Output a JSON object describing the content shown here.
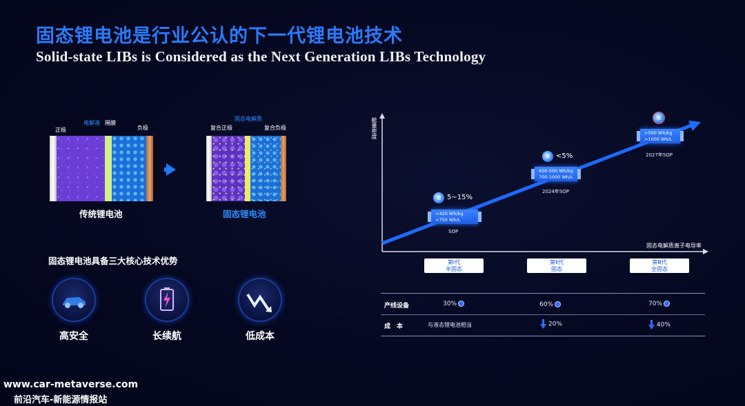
{
  "title_cn": "固态锂电池是行业公认的下一代锂电池技术",
  "title_en": "Solid-state LIBs is Considered as the Next Generation LIBs Technology",
  "traditional_cell": {
    "label_cathode": "正极",
    "label_electrolyte": "电解液",
    "label_separator": "隔膜",
    "label_anode": "负极",
    "name": "传统锂电池"
  },
  "solid_cell": {
    "label_electrolyte": "固态电解质",
    "label_cathode": "复合正极",
    "label_anode": "复合负极",
    "name": "固态锂电池"
  },
  "advantages": {
    "title": "固态锂电池具备三大核心技术优势",
    "items": [
      {
        "label": "高安全",
        "icon": "car-icon"
      },
      {
        "label": "长续航",
        "icon": "battery-bolt-icon"
      },
      {
        "label": "低成本",
        "icon": "trend-down-icon"
      }
    ]
  },
  "graph": {
    "y_axis": "能量密度",
    "x_axis": "固态电解质离子电导率",
    "gens": [
      {
        "name": "第Ⅰ代",
        "sub": "半固态",
        "liquid_label": "液",
        "liquid_pct": "5~15%",
        "spec1": "<420 Wh/kg",
        "spec2": "<750 Wh/L",
        "sop": "SOP"
      },
      {
        "name": "第Ⅱ代",
        "sub": "固态",
        "liquid_label": "液",
        "liquid_pct": "<5%",
        "spec1": "400-500 Wh/kg",
        "spec2": "700-1000 Wh/L",
        "sop": "2024年SOP"
      },
      {
        "name": "第Ⅲ代",
        "sub": "全固态",
        "liquid_label": "液",
        "liquid_pct": "",
        "spec1": ">500 Wh/kg",
        "spec2": ">1000 Wh/L",
        "sop": "2027年SOP"
      }
    ]
  },
  "table": {
    "row1_label": "产线设备",
    "row1": [
      "30%",
      "60%",
      "70%"
    ],
    "row2_label": "成　本",
    "row2": [
      "与液态锂电池相当",
      "20%",
      "40%"
    ]
  },
  "footer": {
    "url": "www.car-metaverse.com",
    "name": "前沿汽车-新能源情报站"
  },
  "colors": {
    "accent": "#2a7bff",
    "background": "#050820"
  }
}
